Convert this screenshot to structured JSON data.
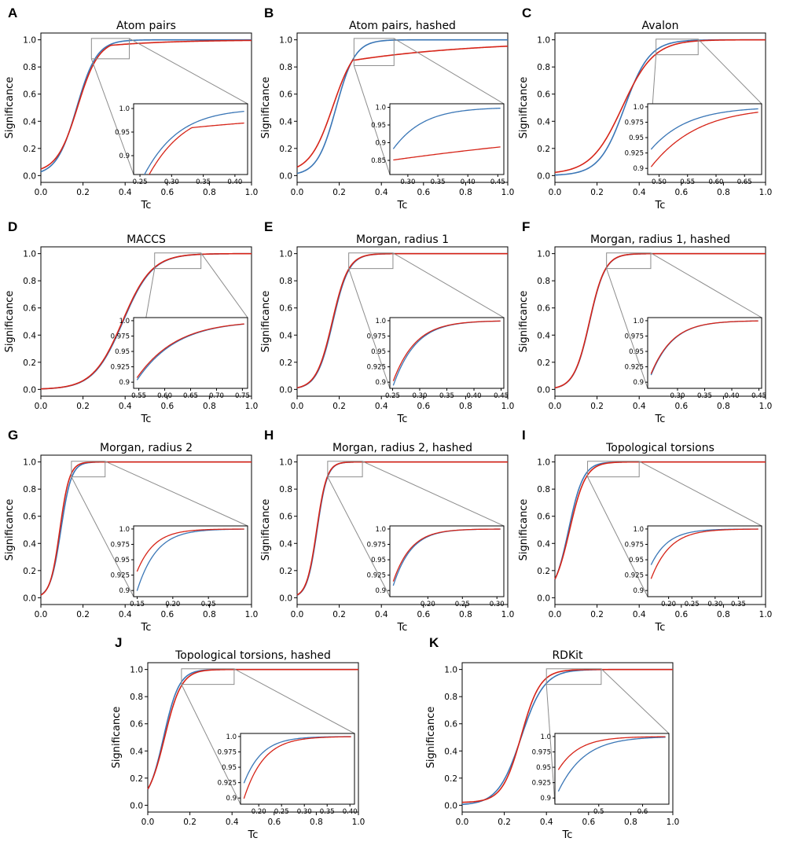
{
  "figure": {
    "x_label": "Tc",
    "y_label": "Significance",
    "colors": {
      "blue": "#3a76b6",
      "red": "#d62418",
      "zoom_box": "#8c8c8c"
    }
  },
  "chart_data": [
    {
      "letter": "A",
      "title": "Atom pairs",
      "type": "line",
      "xlim": [
        0,
        1
      ],
      "ylim": [
        -0.05,
        1.05
      ],
      "x_ticks": [
        "0.0",
        "0.2",
        "0.4",
        "0.6",
        "0.8",
        "1.0"
      ],
      "y_ticks": [
        "0.0",
        "0.2",
        "0.4",
        "0.6",
        "0.8",
        "1.0"
      ],
      "series": [
        {
          "name": "blue",
          "color": "#3a76b6",
          "mid": 0.17,
          "scale": 0.048,
          "base": 0
        },
        {
          "name": "red",
          "color": "#d62418",
          "mid": 0.175,
          "scale": 0.05,
          "base": 0.02,
          "sat": 0.93,
          "k": 0.12
        }
      ],
      "inset": {
        "xlim": [
          0.24,
          0.42
        ],
        "ylim": [
          0.86,
          1.01
        ],
        "x_ticks": [
          "0.25",
          "0.30",
          "0.35",
          "0.40"
        ],
        "y_ticks": [
          "0.9",
          "0.95",
          "1.0"
        ]
      }
    },
    {
      "letter": "B",
      "title": "Atom pairs, hashed",
      "type": "line",
      "xlim": [
        0,
        1
      ],
      "ylim": [
        -0.05,
        1.05
      ],
      "x_ticks": [
        "0.0",
        "0.2",
        "0.4",
        "0.6",
        "0.8",
        "1.0"
      ],
      "y_ticks": [
        "0.0",
        "0.2",
        "0.4",
        "0.6",
        "0.8",
        "1.0"
      ],
      "series": [
        {
          "name": "blue",
          "color": "#3a76b6",
          "mid": 0.185,
          "scale": 0.045,
          "base": 0
        },
        {
          "name": "red",
          "color": "#d62418",
          "mid": 0.17,
          "scale": 0.055,
          "base": 0.02,
          "sat": 0.82,
          "k": 0.25
        }
      ],
      "inset": {
        "xlim": [
          0.27,
          0.46
        ],
        "ylim": [
          0.81,
          1.01
        ],
        "x_ticks": [
          "0.30",
          "0.35",
          "0.40",
          "0.45"
        ],
        "y_ticks": [
          "0.85",
          "0.9",
          "0.95",
          "1.0"
        ]
      }
    },
    {
      "letter": "C",
      "title": "Avalon",
      "type": "line",
      "xlim": [
        0,
        1
      ],
      "ylim": [
        -0.05,
        1.05
      ],
      "x_ticks": [
        "0.0",
        "0.2",
        "0.4",
        "0.6",
        "0.8",
        "1.0"
      ],
      "y_ticks": [
        "0.0",
        "0.2",
        "0.4",
        "0.6",
        "0.8",
        "1.0"
      ],
      "series": [
        {
          "name": "blue",
          "color": "#3a76b6",
          "mid": 0.33,
          "scale": 0.06,
          "base": 0
        },
        {
          "name": "red",
          "color": "#d62418",
          "mid": 0.32,
          "scale": 0.075,
          "base": 0.01
        }
      ],
      "inset": {
        "xlim": [
          0.48,
          0.68
        ],
        "ylim": [
          0.89,
          1.005
        ],
        "x_ticks": [
          "0.50",
          "0.55",
          "0.60",
          "0.65"
        ],
        "y_ticks": [
          "0.9",
          "0.925",
          "0.95",
          "0.975",
          "1.0"
        ]
      }
    },
    {
      "letter": "D",
      "title": "MACCS",
      "type": "line",
      "xlim": [
        0,
        1
      ],
      "ylim": [
        -0.05,
        1.05
      ],
      "x_ticks": [
        "0.0",
        "0.2",
        "0.4",
        "0.6",
        "0.8",
        "1.0"
      ],
      "y_ticks": [
        "0.0",
        "0.2",
        "0.4",
        "0.6",
        "0.8",
        "1.0"
      ],
      "series": [
        {
          "name": "blue",
          "color": "#3a76b6",
          "mid": 0.39,
          "scale": 0.07,
          "base": 0
        },
        {
          "name": "red",
          "color": "#d62418",
          "mid": 0.387,
          "scale": 0.07,
          "base": 0
        }
      ],
      "inset": {
        "xlim": [
          0.54,
          0.76
        ],
        "ylim": [
          0.89,
          1.005
        ],
        "x_ticks": [
          "0.55",
          "0.60",
          "0.65",
          "0.70",
          "0.75"
        ],
        "y_ticks": [
          "0.9",
          "0.925",
          "0.95",
          "0.975",
          "1.0"
        ]
      }
    },
    {
      "letter": "E",
      "title": "Morgan, radius 1",
      "type": "line",
      "xlim": [
        0,
        1
      ],
      "ylim": [
        -0.05,
        1.05
      ],
      "x_ticks": [
        "0.0",
        "0.2",
        "0.4",
        "0.6",
        "0.8",
        "1.0"
      ],
      "y_ticks": [
        "0.0",
        "0.2",
        "0.4",
        "0.6",
        "0.8",
        "1.0"
      ],
      "series": [
        {
          "name": "blue",
          "color": "#3a76b6",
          "mid": 0.17,
          "scale": 0.038,
          "base": 0
        },
        {
          "name": "red",
          "color": "#d62418",
          "mid": 0.167,
          "scale": 0.038,
          "base": 0
        }
      ],
      "inset": {
        "xlim": [
          0.245,
          0.455
        ],
        "ylim": [
          0.89,
          1.005
        ],
        "x_ticks": [
          "0.25",
          "0.30",
          "0.35",
          "0.40",
          "0.45"
        ],
        "y_ticks": [
          "0.9",
          "0.925",
          "0.95",
          "0.975",
          "1.0"
        ]
      }
    },
    {
      "letter": "F",
      "title": "Morgan, radius 1, hashed",
      "type": "line",
      "xlim": [
        0,
        1
      ],
      "ylim": [
        -0.05,
        1.05
      ],
      "x_ticks": [
        "0.0",
        "0.2",
        "0.4",
        "0.6",
        "0.8",
        "1.0"
      ],
      "y_ticks": [
        "0.0",
        "0.2",
        "0.4",
        "0.6",
        "0.8",
        "1.0"
      ],
      "series": [
        {
          "name": "blue",
          "color": "#3a76b6",
          "mid": 0.165,
          "scale": 0.037,
          "base": 0
        },
        {
          "name": "red",
          "color": "#d62418",
          "mid": 0.164,
          "scale": 0.037,
          "base": 0
        }
      ],
      "inset": {
        "xlim": [
          0.245,
          0.455
        ],
        "ylim": [
          0.89,
          1.005
        ],
        "x_ticks": [
          "0.30",
          "0.35",
          "0.40",
          "0.45"
        ],
        "y_ticks": [
          "0.9",
          "0.925",
          "0.95",
          "0.975",
          "1.0"
        ]
      }
    },
    {
      "letter": "G",
      "title": "Morgan, radius 2",
      "type": "line",
      "xlim": [
        0,
        1
      ],
      "ylim": [
        -0.05,
        1.05
      ],
      "x_ticks": [
        "0.0",
        "0.2",
        "0.4",
        "0.6",
        "0.8",
        "1.0"
      ],
      "y_ticks": [
        "0.0",
        "0.2",
        "0.4",
        "0.6",
        "0.8",
        "1.0"
      ],
      "series": [
        {
          "name": "blue",
          "color": "#3a76b6",
          "mid": 0.095,
          "scale": 0.025,
          "base": 0
        },
        {
          "name": "red",
          "color": "#d62418",
          "mid": 0.09,
          "scale": 0.023,
          "base": 0
        }
      ],
      "inset": {
        "xlim": [
          0.145,
          0.305
        ],
        "ylim": [
          0.89,
          1.005
        ],
        "x_ticks": [
          "0.15",
          "0.20",
          "0.25"
        ],
        "y_ticks": [
          "0.9",
          "0.925",
          "0.95",
          "0.975",
          "1.0"
        ]
      }
    },
    {
      "letter": "H",
      "title": "Morgan, radius 2, hashed",
      "type": "line",
      "xlim": [
        0,
        1
      ],
      "ylim": [
        -0.05,
        1.05
      ],
      "x_ticks": [
        "0.0",
        "0.2",
        "0.4",
        "0.6",
        "0.8",
        "1.0"
      ],
      "y_ticks": [
        "0.0",
        "0.2",
        "0.4",
        "0.6",
        "0.8",
        "1.0"
      ],
      "series": [
        {
          "name": "blue",
          "color": "#3a76b6",
          "mid": 0.095,
          "scale": 0.024,
          "base": 0
        },
        {
          "name": "red",
          "color": "#d62418",
          "mid": 0.093,
          "scale": 0.024,
          "base": 0
        }
      ],
      "inset": {
        "xlim": [
          0.145,
          0.31
        ],
        "ylim": [
          0.89,
          1.005
        ],
        "x_ticks": [
          "0.20",
          "0.25",
          "0.30"
        ],
        "y_ticks": [
          "0.9",
          "0.925",
          "0.95",
          "0.975",
          "1.0"
        ]
      }
    },
    {
      "letter": "I",
      "title": "Topological torsions",
      "type": "line",
      "xlim": [
        0,
        1
      ],
      "ylim": [
        -0.05,
        1.05
      ],
      "x_ticks": [
        "0.0",
        "0.2",
        "0.4",
        "0.6",
        "0.8",
        "1.0"
      ],
      "y_ticks": [
        "0.0",
        "0.2",
        "0.4",
        "0.6",
        "0.8",
        "1.0"
      ],
      "series": [
        {
          "name": "blue",
          "color": "#3a76b6",
          "mid": 0.065,
          "scale": 0.035,
          "base": 0
        },
        {
          "name": "red",
          "color": "#d62418",
          "mid": 0.07,
          "scale": 0.038,
          "base": 0
        }
      ],
      "inset": {
        "xlim": [
          0.155,
          0.4
        ],
        "ylim": [
          0.89,
          1.005
        ],
        "x_ticks": [
          "0.20",
          "0.25",
          "0.30",
          "0.35"
        ],
        "y_ticks": [
          "0.9",
          "0.925",
          "0.95",
          "0.975",
          "1.0"
        ]
      }
    },
    {
      "letter": "J",
      "title": "Topological torsions, hashed",
      "type": "line",
      "xlim": [
        0,
        1
      ],
      "ylim": [
        -0.05,
        1.05
      ],
      "x_ticks": [
        "0.0",
        "0.2",
        "0.4",
        "0.6",
        "0.8",
        "1.0"
      ],
      "y_ticks": [
        "0.0",
        "0.2",
        "0.4",
        "0.6",
        "0.8",
        "1.0"
      ],
      "series": [
        {
          "name": "blue",
          "color": "#3a76b6",
          "mid": 0.075,
          "scale": 0.037,
          "base": 0
        },
        {
          "name": "red",
          "color": "#d62418",
          "mid": 0.08,
          "scale": 0.04,
          "base": 0
        }
      ],
      "inset": {
        "xlim": [
          0.16,
          0.41
        ],
        "ylim": [
          0.89,
          1.005
        ],
        "x_ticks": [
          "0.20",
          "0.25",
          "0.30",
          "0.35",
          "0.40"
        ],
        "y_ticks": [
          "0.9",
          "0.925",
          "0.95",
          "0.975",
          "1.0"
        ]
      }
    },
    {
      "letter": "K",
      "title": "RDKit",
      "type": "line",
      "xlim": [
        0,
        1
      ],
      "ylim": [
        -0.05,
        1.05
      ],
      "x_ticks": [
        "0.0",
        "0.2",
        "0.4",
        "0.6",
        "0.8",
        "1.0"
      ],
      "y_ticks": [
        "0.0",
        "0.2",
        "0.4",
        "0.6",
        "0.8",
        "1.0"
      ],
      "series": [
        {
          "name": "blue",
          "color": "#3a76b6",
          "mid": 0.28,
          "scale": 0.055,
          "base": 0
        },
        {
          "name": "red",
          "color": "#d62418",
          "mid": 0.28,
          "scale": 0.045,
          "base": 0.02
        }
      ],
      "inset": {
        "xlim": [
          0.4,
          0.66
        ],
        "ylim": [
          0.89,
          1.005
        ],
        "x_ticks": [
          "0.5",
          "0.6"
        ],
        "y_ticks": [
          "0.9",
          "0.925",
          "0.95",
          "0.975",
          "1.0"
        ]
      }
    }
  ]
}
